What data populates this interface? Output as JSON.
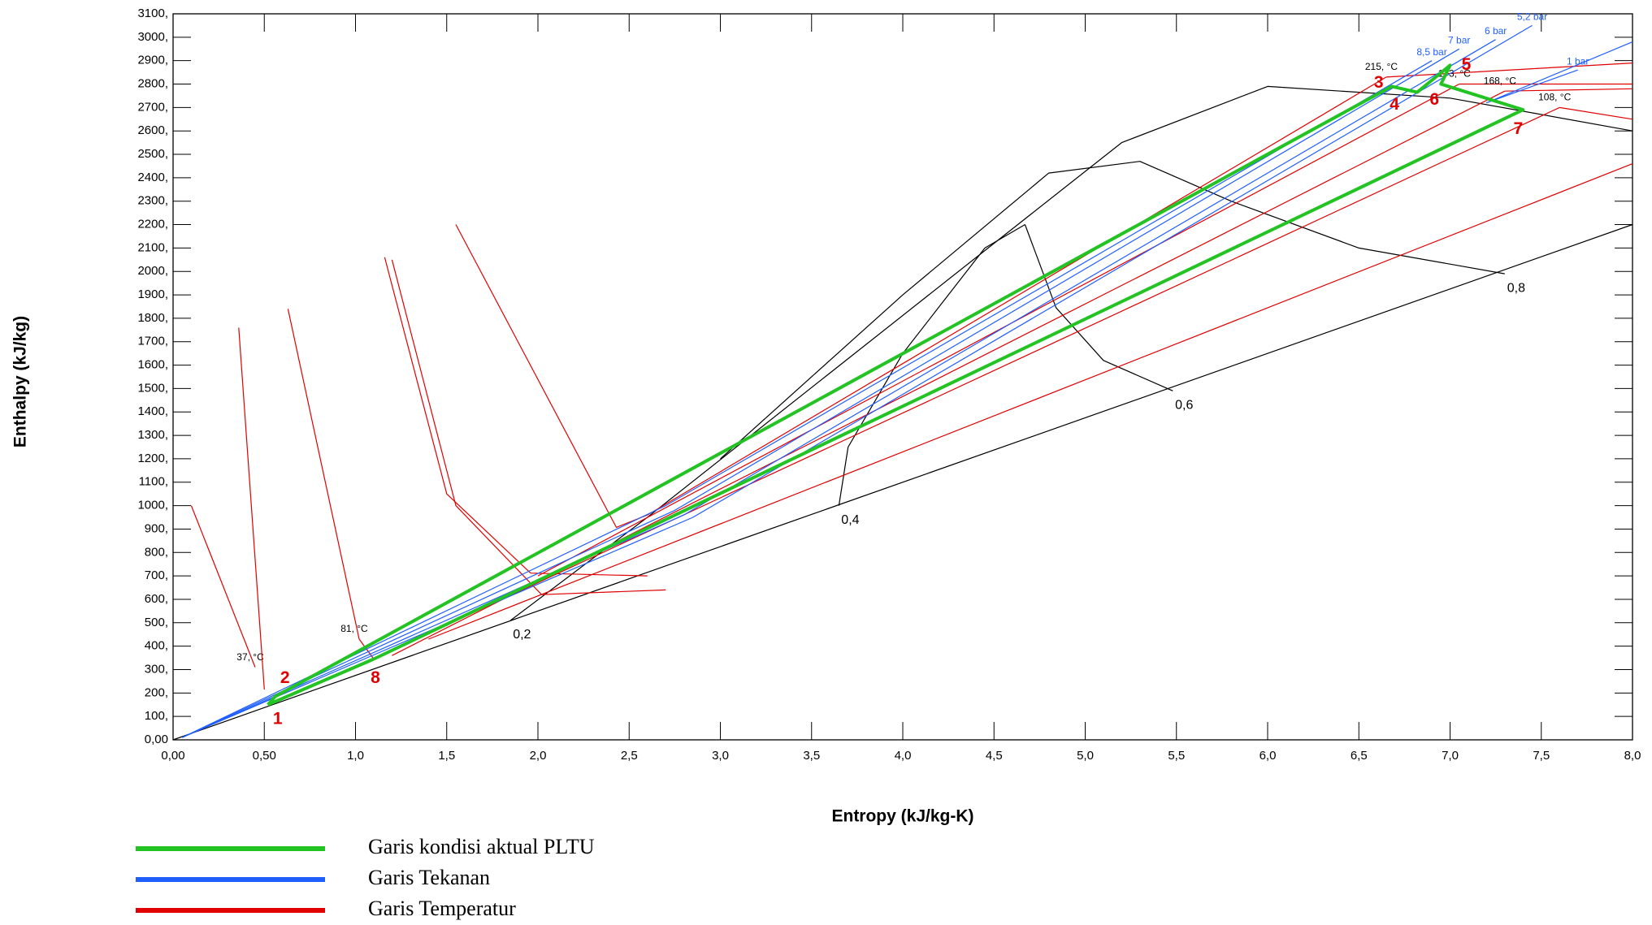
{
  "chart_data": {
    "type": "line",
    "x_label": "Entropy (kJ/kg-K)",
    "y_label": "Enthalpy (kJ/kg)",
    "xlim": [
      0,
      8
    ],
    "ylim": [
      0,
      3100
    ],
    "xticks": [
      {
        "value": 0,
        "label": "0,00"
      },
      {
        "value": 0.5,
        "label": "0,50"
      },
      {
        "value": 1,
        "label": "1,0"
      },
      {
        "value": 1.5,
        "label": "1,5"
      },
      {
        "value": 2,
        "label": "2,0"
      },
      {
        "value": 2.5,
        "label": "2,5"
      },
      {
        "value": 3,
        "label": "3,0"
      },
      {
        "value": 3.5,
        "label": "3,5"
      },
      {
        "value": 4,
        "label": "4,0"
      },
      {
        "value": 4.5,
        "label": "4,5"
      },
      {
        "value": 5,
        "label": "5,0"
      },
      {
        "value": 5.5,
        "label": "5,5"
      },
      {
        "value": 6,
        "label": "6,0"
      },
      {
        "value": 6.5,
        "label": "6,5"
      },
      {
        "value": 7,
        "label": "7,0"
      },
      {
        "value": 7.5,
        "label": "7,5"
      },
      {
        "value": 8,
        "label": "8,0"
      }
    ],
    "yticks": [
      {
        "value": 0,
        "label": "0,00"
      },
      {
        "value": 100,
        "label": "100,"
      },
      {
        "value": 200,
        "label": "200,"
      },
      {
        "value": 300,
        "label": "300,"
      },
      {
        "value": 400,
        "label": "400,"
      },
      {
        "value": 500,
        "label": "500,"
      },
      {
        "value": 600,
        "label": "600,"
      },
      {
        "value": 700,
        "label": "700,"
      },
      {
        "value": 800,
        "label": "800,"
      },
      {
        "value": 900,
        "label": "900,"
      },
      {
        "value": 1000,
        "label": "1000,"
      },
      {
        "value": 1100,
        "label": "1100,"
      },
      {
        "value": 1200,
        "label": "1200,"
      },
      {
        "value": 1300,
        "label": "1300,"
      },
      {
        "value": 1400,
        "label": "1400,"
      },
      {
        "value": 1500,
        "label": "1500,"
      },
      {
        "value": 1600,
        "label": "1600,"
      },
      {
        "value": 1700,
        "label": "1700,"
      },
      {
        "value": 1800,
        "label": "1800,"
      },
      {
        "value": 1900,
        "label": "1900,"
      },
      {
        "value": 2000,
        "label": "2000,"
      },
      {
        "value": 2100,
        "label": "2100,"
      },
      {
        "value": 2200,
        "label": "2200,"
      },
      {
        "value": 2300,
        "label": "2300,"
      },
      {
        "value": 2400,
        "label": "2400,"
      },
      {
        "value": 2500,
        "label": "2500,"
      },
      {
        "value": 2600,
        "label": "2600,"
      },
      {
        "value": 2700,
        "label": "2700,"
      },
      {
        "value": 2800,
        "label": "2800,"
      },
      {
        "value": 2900,
        "label": "2900,"
      },
      {
        "value": 3000,
        "label": "3000,"
      },
      {
        "value": 3100,
        "label": "3100,"
      }
    ],
    "series": [
      {
        "color": "#000000",
        "lines": [
          {
            "x": [
              0,
              8
            ],
            "values": [
              0,
              2200
            ]
          },
          {
            "label": "0,2",
            "x": [
              1.85,
              2.6,
              4.5,
              5.2,
              6.0,
              7.0,
              8.0
            ],
            "values": [
              510,
              950,
              2120,
              2550,
              2790,
              2740,
              2600
            ]
          },
          {
            "label": "0,4",
            "x": [
              3.65,
              3.7,
              4.0,
              4.45,
              4.67
            ],
            "values": [
              1000,
              1250,
              1650,
              2100,
              2200
            ]
          },
          {
            "label": "0,6",
            "x": [
              5.48,
              5.1,
              4.84,
              4.67
            ],
            "values": [
              1490,
              1620,
              1845,
              2200
            ]
          },
          {
            "label": "0,8",
            "x": [
              7.3,
              6.5,
              5.8,
              5.3,
              4.8,
              4.0,
              3.0
            ],
            "values": [
              1990,
              2100,
              2300,
              2470,
              2420,
              1900,
              1200
            ]
          }
        ]
      },
      {
        "name": "Garis Temperatur",
        "color": "#e00000",
        "lines": [
          {
            "label": "37, °C",
            "x": [
              0.45,
              0.1
            ],
            "values": [
              310,
              1000
            ]
          },
          {
            "x": [
              0.36,
              0.5
            ],
            "values": [
              1760,
              215
            ]
          },
          {
            "label": "81, °C",
            "x": [
              1.02,
              0.63
            ],
            "values": [
              430,
              1840
            ]
          },
          {
            "x": [
              1.02,
              1.1
            ],
            "values": [
              430,
              345
            ]
          },
          {
            "x": [
              1.16,
              1.5,
              1.96,
              2.6
            ],
            "values": [
              2060,
              1050,
              712,
              700
            ]
          },
          {
            "x": [
              1.2,
              1.55,
              2.02,
              2.7
            ],
            "values": [
              2050,
              1000,
              620,
              640
            ]
          },
          {
            "label": "215, °C",
            "x": [
              6.65,
              2.6,
              2.43,
              1.55
            ],
            "values": [
              2830,
              960,
              907,
              2200
            ]
          },
          {
            "x": [
              6.65,
              8.0
            ],
            "values": [
              2830,
              2890
            ]
          },
          {
            "label": "173, °C",
            "x": [
              7.05,
              2.0
            ],
            "values": [
              2800,
              700
            ]
          },
          {
            "x": [
              7.05,
              8.0
            ],
            "values": [
              2800,
              2800
            ]
          },
          {
            "label": "168, °C",
            "x": [
              7.3,
              1.2
            ],
            "values": [
              2770,
              360
            ]
          },
          {
            "x": [
              7.3,
              8.0
            ],
            "values": [
              2770,
              2780
            ]
          },
          {
            "label": "108, °C",
            "x": [
              7.6,
              8.0
            ],
            "values": [
              2700,
              2650
            ]
          },
          {
            "x": [
              1.4,
              8.0
            ],
            "values": [
              430,
              2460
            ]
          },
          {
            "x": [
              1.1,
              7.6
            ],
            "values": [
              345,
              2700
            ]
          }
        ]
      },
      {
        "name": "Garis Tekanan",
        "color": "#1f5fff",
        "lines": [
          {
            "label": "8,5 bar",
            "x": [
              6.9,
              2.7,
              0.05
            ],
            "values": [
              2900,
              1000,
              10
            ]
          },
          {
            "label": "7 bar",
            "x": [
              7.05,
              2.75,
              0.05
            ],
            "values": [
              2950,
              980,
              10
            ]
          },
          {
            "label": "6 bar",
            "x": [
              7.25,
              2.8,
              0.05
            ],
            "values": [
              2990,
              960,
              10
            ]
          },
          {
            "label": "5,2 bar",
            "x": [
              7.45,
              2.85,
              0.05
            ],
            "values": [
              3050,
              950,
              10
            ]
          },
          {
            "label": "1 bar",
            "x": [
              7.7,
              7.2,
              8.0
            ],
            "values": [
              2860,
              2720,
              2980
            ]
          }
        ]
      },
      {
        "name": "Garis kondisi aktual PLTU",
        "color": "#22c322",
        "point_labels": [
          "1",
          "2",
          "3",
          "4",
          "5",
          "6",
          "7",
          "8"
        ],
        "x": [
          0.52,
          0.56,
          6.68,
          6.82,
          7.0,
          6.95,
          7.4,
          1.1
        ],
        "values": [
          150,
          185,
          2790,
          2765,
          2880,
          2800,
          2690,
          345
        ]
      }
    ]
  }
}
